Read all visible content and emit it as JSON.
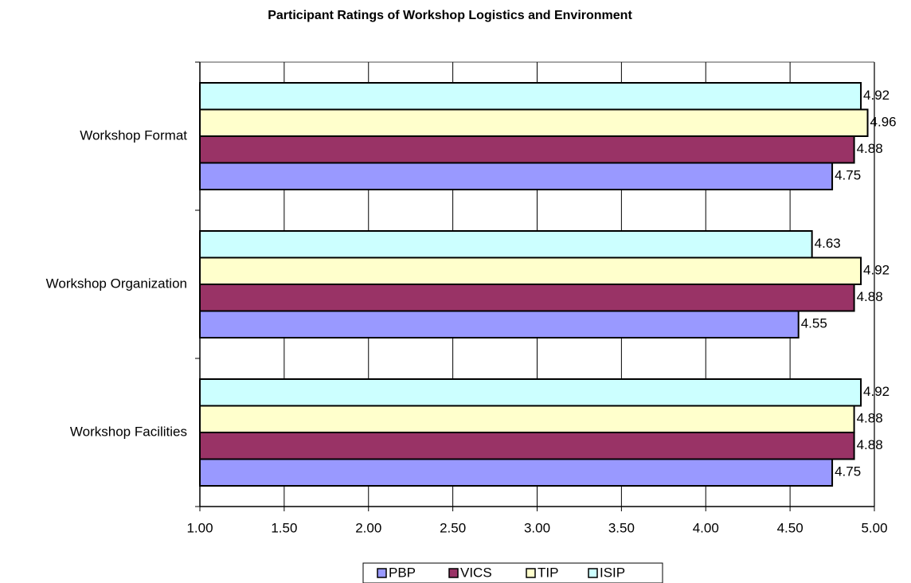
{
  "chart_data": {
    "type": "barh",
    "title": "Participant Ratings of Workshop Logistics and Environment",
    "categories": [
      "Workshop Format",
      "Workshop Organization",
      "Workshop Facilities"
    ],
    "series": [
      {
        "name": "PBP",
        "color": "#9999ff",
        "values": [
          4.75,
          4.55,
          4.75
        ]
      },
      {
        "name": "VICS",
        "color": "#993366",
        "values": [
          4.88,
          4.88,
          4.88
        ]
      },
      {
        "name": "TIP",
        "color": "#ffffcc",
        "values": [
          4.96,
          4.92,
          4.88
        ]
      },
      {
        "name": "ISIP",
        "color": "#ccffff",
        "values": [
          4.92,
          4.63,
          4.92
        ]
      }
    ],
    "xlim": [
      1,
      5
    ],
    "xticks": [
      {
        "value": 1,
        "label": "1.00"
      },
      {
        "value": 1.5,
        "label": "1.50"
      },
      {
        "value": 2,
        "label": "2.00"
      },
      {
        "value": 2.5,
        "label": "2.50"
      },
      {
        "value": 3,
        "label": "3.00"
      },
      {
        "value": 3.5,
        "label": "3.50"
      },
      {
        "value": 4,
        "label": "4.00"
      },
      {
        "value": 4.5,
        "label": "4.50"
      },
      {
        "value": 5,
        "label": "5.00"
      }
    ],
    "grid": true,
    "legend": "bottom"
  }
}
